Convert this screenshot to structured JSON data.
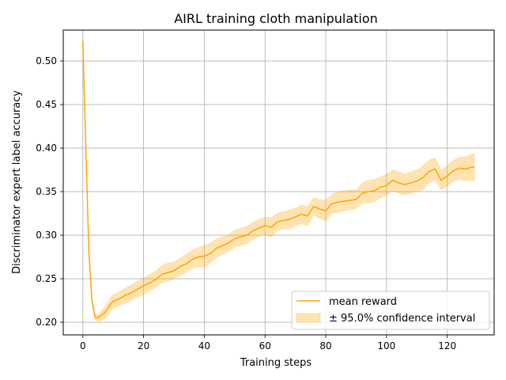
{
  "chart_data": {
    "type": "line",
    "title": "AIRL training cloth manipulation",
    "xlabel": "Training steps",
    "ylabel": "Discriminator expert label accuracy",
    "xlim": [
      -6.45,
      135.45
    ],
    "ylim": [
      0.1855,
      0.5355
    ],
    "xticks": [
      0,
      20,
      40,
      60,
      80,
      100,
      120
    ],
    "yticks": [
      0.2,
      0.25,
      0.3,
      0.35,
      0.4,
      0.45,
      0.5
    ],
    "xtick_labels": [
      "0",
      "20",
      "40",
      "60",
      "80",
      "100",
      "120"
    ],
    "ytick_labels": [
      "0.20",
      "0.25",
      "0.30",
      "0.35",
      "0.40",
      "0.45",
      "0.50"
    ],
    "grid": true,
    "legend_position": "lower-right",
    "colors": {
      "line": "#ffa500",
      "band": "#ffa500"
    },
    "series": [
      {
        "name": "mean reward",
        "x": [
          0,
          1,
          2,
          3,
          4,
          5,
          6,
          7,
          8,
          9,
          10,
          12,
          14,
          16,
          18,
          20,
          22,
          24,
          26,
          28,
          30,
          32,
          34,
          36,
          38,
          40,
          42,
          44,
          46,
          48,
          50,
          52,
          54,
          56,
          58,
          60,
          62,
          64,
          66,
          68,
          70,
          72,
          74,
          76,
          78,
          80,
          82,
          84,
          86,
          88,
          90,
          92,
          94,
          96,
          98,
          100,
          102,
          104,
          106,
          108,
          110,
          112,
          114,
          116,
          118,
          120,
          122,
          124,
          126,
          128,
          129
        ],
        "y": [
          0.523,
          0.4,
          0.28,
          0.225,
          0.206,
          0.205,
          0.208,
          0.21,
          0.215,
          0.22,
          0.224,
          0.227,
          0.231,
          0.234,
          0.238,
          0.242,
          0.245,
          0.249,
          0.255,
          0.257,
          0.259,
          0.264,
          0.267,
          0.272,
          0.275,
          0.276,
          0.279,
          0.285,
          0.288,
          0.291,
          0.296,
          0.298,
          0.3,
          0.305,
          0.308,
          0.311,
          0.309,
          0.315,
          0.317,
          0.318,
          0.321,
          0.324,
          0.322,
          0.333,
          0.33,
          0.328,
          0.336,
          0.338,
          0.339,
          0.34,
          0.341,
          0.348,
          0.35,
          0.351,
          0.355,
          0.357,
          0.363,
          0.36,
          0.358,
          0.36,
          0.362,
          0.366,
          0.373,
          0.376,
          0.363,
          0.368,
          0.374,
          0.377,
          0.376,
          0.378,
          0.378
        ]
      }
    ],
    "band": {
      "name": "± 95.0% confidence interval",
      "lower": [
        0.523,
        0.4,
        0.28,
        0.223,
        0.203,
        0.201,
        0.202,
        0.203,
        0.207,
        0.212,
        0.216,
        0.219,
        0.222,
        0.225,
        0.229,
        0.232,
        0.236,
        0.24,
        0.245,
        0.247,
        0.25,
        0.254,
        0.257,
        0.262,
        0.264,
        0.263,
        0.268,
        0.274,
        0.278,
        0.281,
        0.286,
        0.288,
        0.29,
        0.295,
        0.298,
        0.301,
        0.298,
        0.305,
        0.307,
        0.307,
        0.311,
        0.313,
        0.311,
        0.323,
        0.319,
        0.316,
        0.325,
        0.326,
        0.328,
        0.329,
        0.33,
        0.336,
        0.337,
        0.338,
        0.343,
        0.345,
        0.351,
        0.348,
        0.346,
        0.348,
        0.35,
        0.352,
        0.36,
        0.363,
        0.352,
        0.356,
        0.362,
        0.364,
        0.362,
        0.363,
        0.362
      ],
      "upper": [
        0.523,
        0.4,
        0.28,
        0.228,
        0.21,
        0.209,
        0.213,
        0.217,
        0.222,
        0.228,
        0.232,
        0.235,
        0.239,
        0.243,
        0.247,
        0.251,
        0.255,
        0.259,
        0.265,
        0.268,
        0.269,
        0.274,
        0.278,
        0.283,
        0.286,
        0.288,
        0.291,
        0.296,
        0.298,
        0.301,
        0.306,
        0.308,
        0.31,
        0.315,
        0.318,
        0.321,
        0.32,
        0.325,
        0.327,
        0.329,
        0.331,
        0.335,
        0.333,
        0.343,
        0.341,
        0.34,
        0.347,
        0.35,
        0.351,
        0.352,
        0.352,
        0.36,
        0.363,
        0.364,
        0.367,
        0.37,
        0.375,
        0.373,
        0.37,
        0.373,
        0.375,
        0.38,
        0.386,
        0.389,
        0.375,
        0.38,
        0.386,
        0.39,
        0.39,
        0.393,
        0.394
      ]
    }
  }
}
